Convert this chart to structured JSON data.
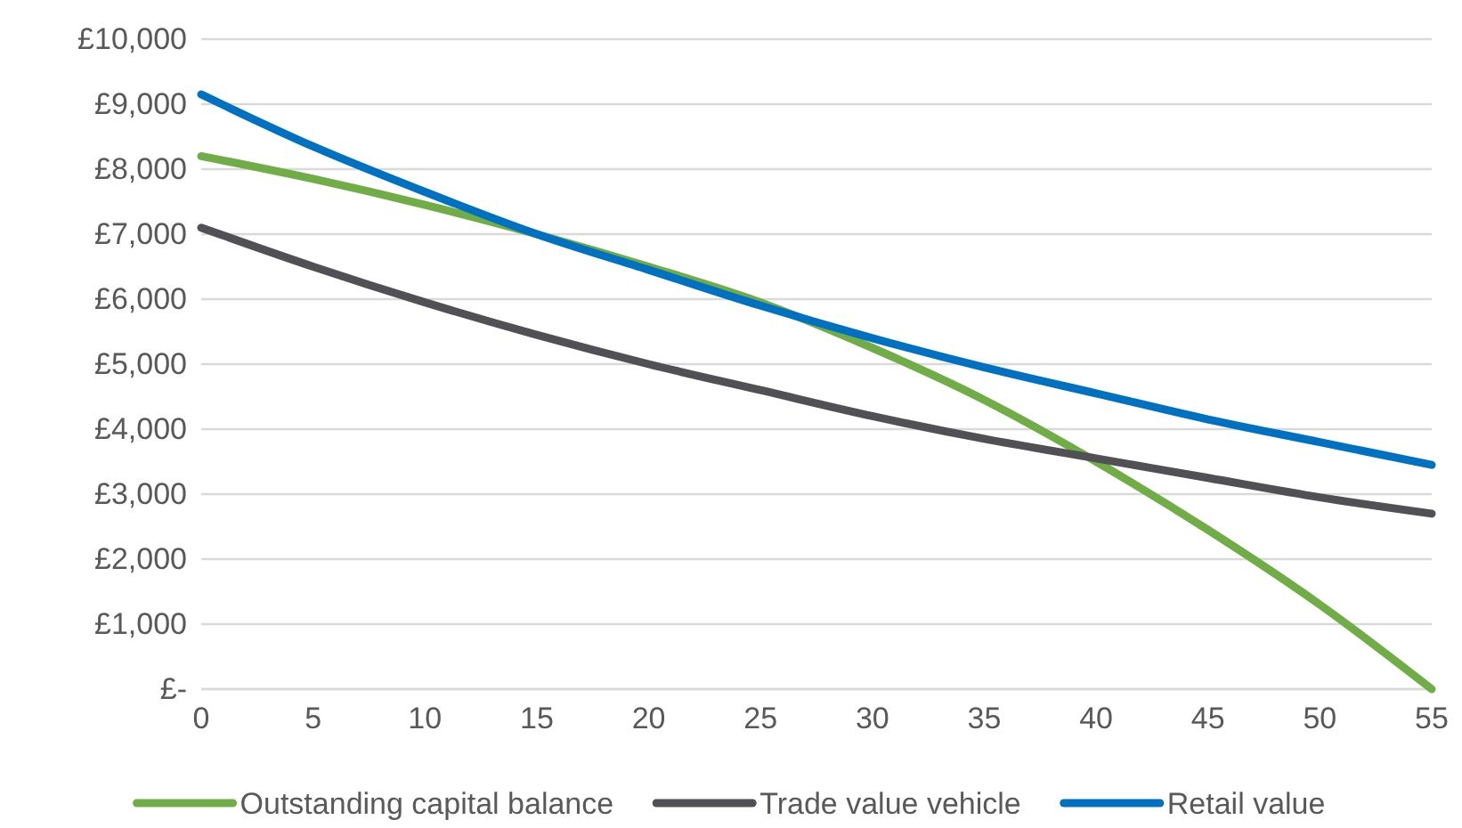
{
  "chart_data": {
    "type": "line",
    "x": [
      0,
      5,
      10,
      15,
      20,
      25,
      30,
      35,
      40,
      45,
      50,
      55
    ],
    "xlim": [
      0,
      55
    ],
    "xticks": [
      0,
      5,
      10,
      15,
      20,
      25,
      30,
      35,
      40,
      45,
      50,
      55
    ],
    "ylim": [
      0,
      10000
    ],
    "yticks": [
      {
        "value": 0,
        "label": "£-"
      },
      {
        "value": 1000,
        "label": "£1,000"
      },
      {
        "value": 2000,
        "label": "£2,000"
      },
      {
        "value": 3000,
        "label": "£3,000"
      },
      {
        "value": 4000,
        "label": "£4,000"
      },
      {
        "value": 5000,
        "label": "£5,000"
      },
      {
        "value": 6000,
        "label": "£6,000"
      },
      {
        "value": 7000,
        "label": "£7,000"
      },
      {
        "value": 8000,
        "label": "£8,000"
      },
      {
        "value": 9000,
        "label": "£9,000"
      },
      {
        "value": 10000,
        "label": "£10,000"
      }
    ],
    "grid": "y",
    "legend": "bottom",
    "marker": "none",
    "line_style": "solid",
    "series": [
      {
        "name": "Outstanding capital balance",
        "color": "#70ad47",
        "values": [
          8200,
          7850,
          7450,
          7000,
          6500,
          5950,
          5250,
          4450,
          3500,
          2450,
          1300,
          0
        ]
      },
      {
        "name": "Trade value vehicle",
        "color": "#505055",
        "values": [
          7100,
          6500,
          5950,
          5450,
          5000,
          4600,
          4200,
          3850,
          3550,
          3250,
          2950,
          2700
        ]
      },
      {
        "name": "Retail value",
        "color": "#0070c0",
        "values": [
          9150,
          8350,
          7650,
          7000,
          6450,
          5900,
          5400,
          4950,
          4550,
          4150,
          3800,
          3450
        ]
      }
    ]
  }
}
